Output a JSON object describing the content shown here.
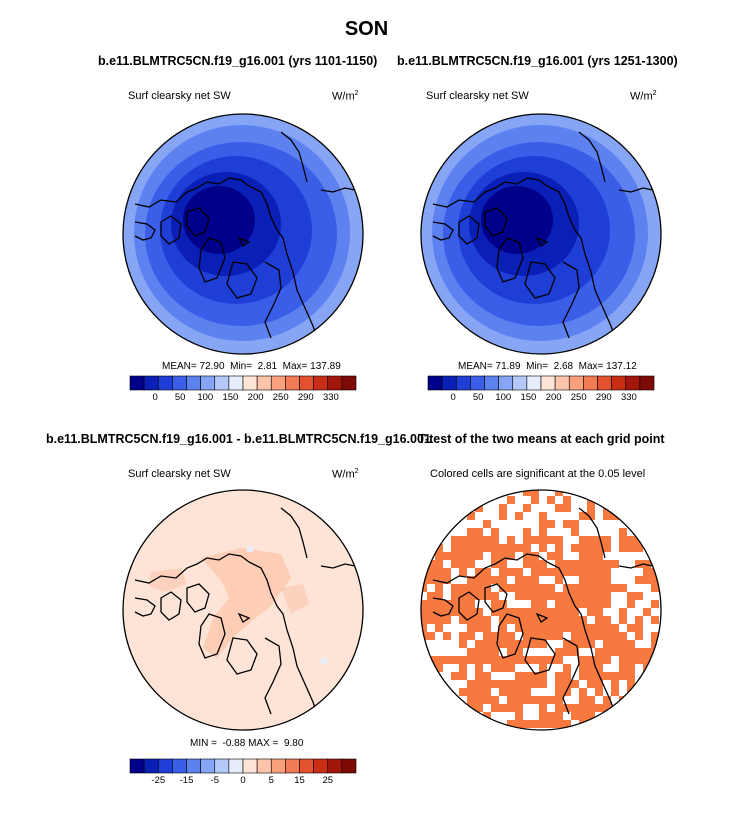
{
  "title": "SON",
  "panels": [
    {
      "title": "b.e11.BLMTRC5CN.f19_g16.001 (yrs 1101-1150)",
      "subtitle": "Surf clearsky net SW",
      "units": "W/m",
      "units_sup": "2",
      "stats": {
        "mean_label": "MEAN=",
        "mean": "72.90",
        "min_label": "Min=",
        "min": "2.81",
        "max_label": "Max=",
        "max": "137.89"
      }
    },
    {
      "title": "b.e11.BLMTRC5CN.f19_g16.001 (yrs 1251-1300)",
      "subtitle": "Surf clearsky net SW",
      "units": "W/m",
      "units_sup": "2",
      "stats": {
        "mean_label": "MEAN=",
        "mean": "71.89",
        "min_label": "Min=",
        "min": "2.68",
        "max_label": "Max=",
        "max": "137.12"
      }
    },
    {
      "title": "b.e11.BLMTRC5CN.f19_g16.001 - b.e11.BLMTRC5CN.f19_g16.001",
      "subtitle": "Surf clearsky net SW",
      "units": "W/m",
      "units_sup": "2",
      "stats": {
        "min_label": "MIN =",
        "min": "-0.88",
        "max_label": "MAX =",
        "max": "9.80"
      }
    },
    {
      "title": "T-test of the two means at each grid point",
      "subtitle": "Colored cells are significant at the 0.05 level"
    }
  ],
  "colorbar_abs": {
    "ticks": [
      "0",
      "50",
      "100",
      "150",
      "200",
      "250",
      "290",
      "330"
    ],
    "colors": [
      "#00008b",
      "#0a1fb5",
      "#1f3ed6",
      "#3a5ee8",
      "#5d82f0",
      "#86a6f5",
      "#b4c9f9",
      "#e6eefd",
      "#fde4d6",
      "#fcc5ab",
      "#f9a07d",
      "#f27a54",
      "#e2522f",
      "#c72e14",
      "#a2150a",
      "#7e0a06"
    ]
  },
  "colorbar_diff": {
    "ticks": [
      "-25",
      "-15",
      "-5",
      "0",
      "5",
      "15",
      "25"
    ],
    "colors": [
      "#00008b",
      "#0a1fb5",
      "#1f3ed6",
      "#3a5ee8",
      "#5d82f0",
      "#86a6f5",
      "#b4c9f9",
      "#e6eefd",
      "#fde4d6",
      "#fcc5ab",
      "#f9a07d",
      "#f27a54",
      "#e2522f",
      "#c72e14",
      "#a2150a",
      "#7e0a06"
    ]
  },
  "chart_data": [
    {
      "type": "heatmap",
      "title": "b.e11.BLMTRC5CN.f19_g16.001 (yrs 1101-1150)",
      "variable": "Surf clearsky net SW",
      "units": "W/m2",
      "projection": "north polar stereographic",
      "mean": 72.9,
      "min": 2.81,
      "max": 137.89,
      "contour_levels": [
        0,
        50,
        100,
        150,
        200,
        250,
        290,
        330
      ]
    },
    {
      "type": "heatmap",
      "title": "b.e11.BLMTRC5CN.f19_g16.001 (yrs 1251-1300)",
      "variable": "Surf clearsky net SW",
      "units": "W/m2",
      "projection": "north polar stereographic",
      "mean": 71.89,
      "min": 2.68,
      "max": 137.12,
      "contour_levels": [
        0,
        50,
        100,
        150,
        200,
        250,
        290,
        330
      ]
    },
    {
      "type": "heatmap",
      "title": "b.e11.BLMTRC5CN.f19_g16.001 - b.e11.BLMTRC5CN.f19_g16.001",
      "variable": "Surf clearsky net SW",
      "units": "W/m2",
      "projection": "north polar stereographic",
      "min": -0.88,
      "max": 9.8,
      "contour_levels": [
        -25,
        -15,
        -5,
        0,
        5,
        15,
        25
      ]
    },
    {
      "type": "heatmap",
      "title": "T-test of the two means at each grid point",
      "note": "Colored cells are significant at the 0.05 level",
      "projection": "north polar stereographic",
      "significance_level": 0.05
    }
  ]
}
